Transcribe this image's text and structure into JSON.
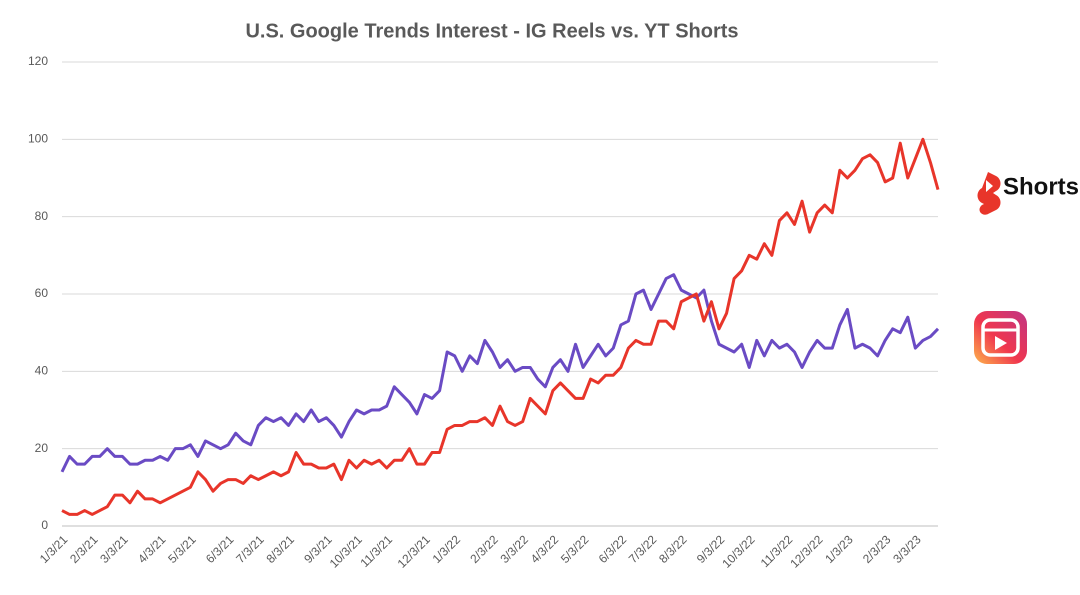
{
  "chart_data": {
    "type": "line",
    "title": "U.S. Google Trends Interest - IG Reels vs. YT Shorts",
    "categories": [
      "1/3/21",
      null,
      null,
      null,
      "2/3/21",
      null,
      null,
      null,
      "3/3/21",
      null,
      null,
      null,
      null,
      "4/3/21",
      null,
      null,
      null,
      "5/3/21",
      null,
      null,
      null,
      null,
      "6/3/21",
      null,
      null,
      null,
      "7/3/21",
      null,
      null,
      null,
      "8/3/21",
      null,
      null,
      null,
      null,
      "9/3/21",
      null,
      null,
      null,
      "10/3/21",
      null,
      null,
      null,
      "11/3/21",
      null,
      null,
      null,
      null,
      "12/3/21",
      null,
      null,
      null,
      "1/3/22",
      null,
      null,
      null,
      null,
      "2/3/22",
      null,
      null,
      null,
      "3/3/22",
      null,
      null,
      null,
      "4/3/22",
      null,
      null,
      null,
      "5/3/22",
      null,
      null,
      null,
      null,
      "6/3/22",
      null,
      null,
      null,
      "7/3/22",
      null,
      null,
      null,
      "8/3/22",
      null,
      null,
      null,
      null,
      "9/3/22",
      null,
      null,
      null,
      "10/3/22",
      null,
      null,
      null,
      null,
      "11/3/22",
      null,
      null,
      null,
      "12/3/22",
      null,
      null,
      null,
      "1/3/23",
      null,
      null,
      null,
      null,
      "2/3/23",
      null,
      null,
      null,
      "3/3/23",
      null,
      null,
      null
    ],
    "series": [
      {
        "color": "#6a4bc4",
        "values": [
          14,
          18,
          16,
          16,
          18,
          18,
          20,
          18,
          18,
          16,
          16,
          17,
          17,
          18,
          17,
          20,
          20,
          21,
          18,
          22,
          21,
          20,
          21,
          24,
          22,
          21,
          26,
          28,
          27,
          28,
          26,
          29,
          27,
          30,
          27,
          28,
          26,
          23,
          27,
          30,
          29,
          30,
          30,
          31,
          36,
          34,
          32,
          29,
          34,
          33,
          35,
          45,
          44,
          40,
          44,
          42,
          48,
          45,
          41,
          43,
          40,
          41,
          41,
          38,
          36,
          41,
          43,
          40,
          47,
          41,
          44,
          47,
          44,
          46,
          52,
          53,
          60,
          61,
          56,
          60,
          64,
          65,
          61,
          60,
          59,
          61,
          53,
          47,
          46,
          45,
          47,
          41,
          48,
          44,
          48,
          46,
          47,
          45,
          41,
          45,
          48,
          46,
          46,
          52,
          56,
          46,
          47,
          46,
          44,
          48,
          51,
          50,
          54,
          46,
          48,
          49,
          51
        ]
      },
      {
        "name": "Shorts",
        "color": "#e8352a",
        "values": [
          4,
          3,
          3,
          4,
          3,
          4,
          5,
          8,
          8,
          6,
          9,
          7,
          7,
          6,
          7,
          8,
          9,
          10,
          14,
          12,
          9,
          11,
          12,
          12,
          11,
          13,
          12,
          13,
          14,
          13,
          14,
          19,
          16,
          16,
          15,
          15,
          16,
          12,
          17,
          15,
          17,
          16,
          17,
          15,
          17,
          17,
          20,
          16,
          16,
          19,
          19,
          25,
          26,
          26,
          27,
          27,
          28,
          26,
          31,
          27,
          26,
          27,
          33,
          31,
          29,
          35,
          37,
          35,
          33,
          33,
          38,
          37,
          39,
          39,
          41,
          46,
          48,
          47,
          47,
          53,
          53,
          51,
          58,
          59,
          60,
          53,
          58,
          51,
          55,
          64,
          66,
          70,
          69,
          73,
          70,
          79,
          81,
          78,
          84,
          76,
          81,
          83,
          81,
          92,
          90,
          92,
          95,
          96,
          94,
          89,
          90,
          99,
          90,
          95,
          100,
          94,
          87
        ]
      }
    ],
    "ylim": [
      0,
      120
    ],
    "yticks": [
      0,
      20,
      40,
      60,
      80,
      100,
      120
    ],
    "grid": true
  }
}
